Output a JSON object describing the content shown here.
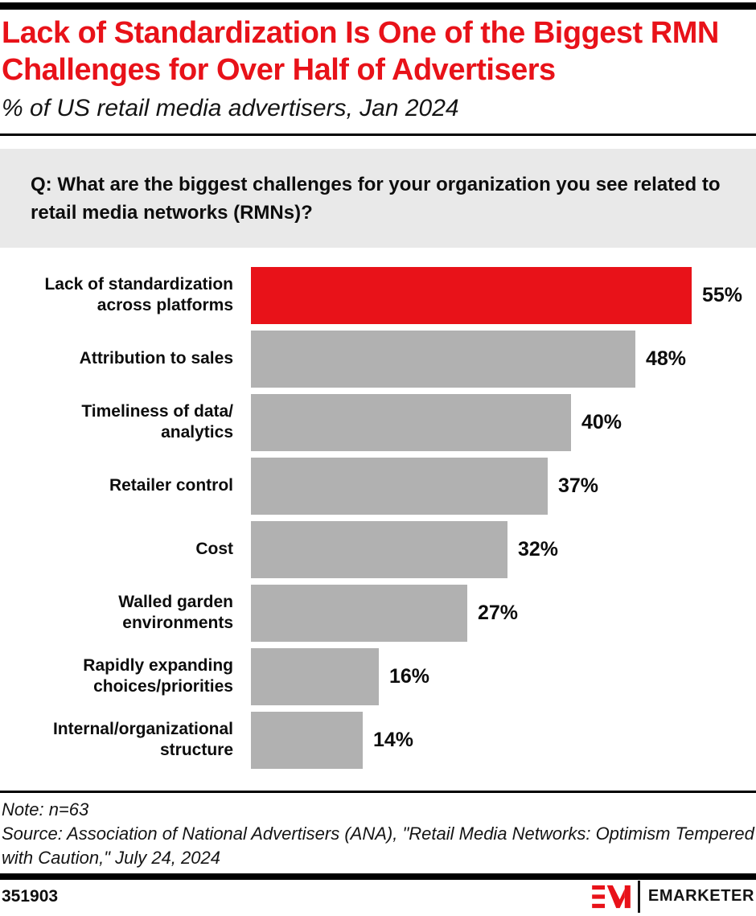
{
  "header": {
    "title": "Lack of Standardization Is One of the Biggest RMN Challenges for Over Half of Advertisers",
    "subtitle": "% of US retail media advertisers, Jan 2024"
  },
  "question": {
    "text": "Q: What are the biggest challenges for your organization you see related to retail media networks (RMNs)?"
  },
  "chart_data": {
    "type": "bar",
    "orientation": "horizontal",
    "title": "Lack of Standardization Is One of the Biggest RMN Challenges for Over Half of Advertisers",
    "subtitle": "% of US retail media advertisers, Jan 2024",
    "unit": "%",
    "xlabel": "",
    "ylabel": "",
    "xlim": [
      0,
      60
    ],
    "grid": false,
    "legend": false,
    "categories": [
      "Lack of standardization across platforms",
      "Attribution to sales",
      "Timeliness of data/analytics",
      "Retailer control",
      "Cost",
      "Walled garden environments",
      "Rapidly expanding choices/priorities",
      "Internal/organizational structure"
    ],
    "categories_display": [
      "Lack of standardization\nacross platforms",
      "Attribution to sales",
      "Timeliness of data/\nanalytics",
      "Retailer control",
      "Cost",
      "Walled garden\nenvironments",
      "Rapidly expanding\nchoices/priorities",
      "Internal/organizational\nstructure"
    ],
    "values": [
      55,
      48,
      40,
      37,
      32,
      27,
      16,
      14
    ],
    "value_labels": [
      "55%",
      "48%",
      "40%",
      "37%",
      "32%",
      "27%",
      "16%",
      "14%"
    ],
    "highlight_index": 0,
    "colors": {
      "highlight": "#e81219",
      "default": "#b1b1b1"
    }
  },
  "footer": {
    "note": "Note: n=63",
    "source": "Source: Association of National Advertisers (ANA), \"Retail Media Networks: Optimism Tempered with Caution,\" July 24, 2024",
    "chart_id": "351903",
    "logo_wordmark": "EMARKETER"
  },
  "colors": {
    "accent_red": "#e81219",
    "bar_gray": "#b1b1b1",
    "question_bg": "#e9e9e9",
    "text": "#0d0d0d"
  }
}
